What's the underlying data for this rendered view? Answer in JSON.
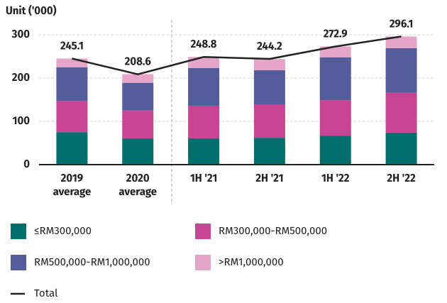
{
  "chart_data": {
    "type": "bar",
    "stacked": true,
    "y_label": "Unit ('000)",
    "categories": [
      "2019\naverage",
      "2020\naverage",
      "1H '21",
      "2H '21",
      "1H '22",
      "2H '22"
    ],
    "series": [
      {
        "name": "≤RM300,000",
        "color": "#006e6a",
        "values": [
          75,
          61,
          61,
          62,
          67,
          74
        ]
      },
      {
        "name": "RM300,000-RM500,000",
        "color": "#c94493",
        "values": [
          72,
          64,
          75,
          76,
          82,
          92
        ]
      },
      {
        "name": "RM500,000-RM1,000,000",
        "color": "#555c9c",
        "values": [
          78,
          64,
          87,
          80,
          99,
          103
        ]
      },
      {
        "name": ">RM1,000,000",
        "color": "#e4a5c8",
        "values": [
          20,
          20,
          26,
          26,
          25,
          27
        ]
      }
    ],
    "total": {
      "name": "Total",
      "color": "#222222",
      "values": [
        245.1,
        208.6,
        248.8,
        244.2,
        272.9,
        296.1
      ]
    },
    "ylim": [
      0,
      300
    ],
    "yticks": [
      0,
      100,
      200,
      300
    ],
    "grid": true
  }
}
